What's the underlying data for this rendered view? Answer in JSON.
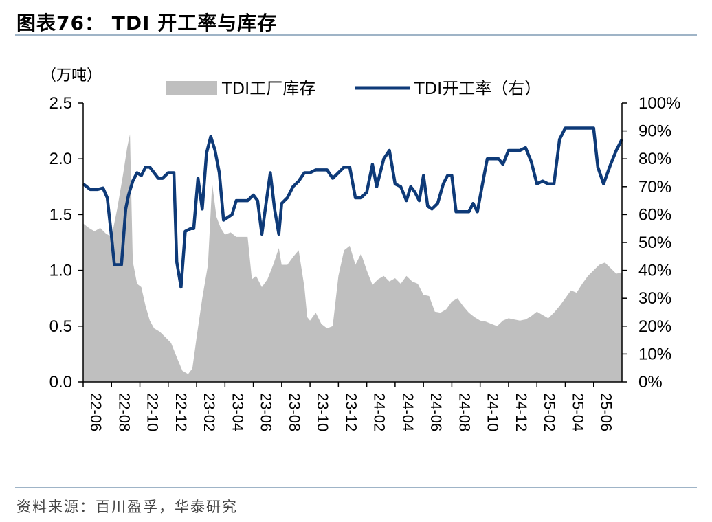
{
  "title": "图表76： TDI 开工率与库存",
  "source": "资料来源：百川盈孚，华泰研究",
  "chart_data": {
    "type": "area+line",
    "left_unit": "（万吨）",
    "left_ylim": [
      0,
      2.5
    ],
    "left_ticks": [
      "0.0",
      "0.5",
      "1.0",
      "1.5",
      "2.0",
      "2.5"
    ],
    "right_ylim": [
      0,
      100
    ],
    "right_ticks": [
      "0%",
      "10%",
      "20%",
      "30%",
      "40%",
      "50%",
      "60%",
      "70%",
      "80%",
      "90%",
      "100%"
    ],
    "x_ticks": [
      "22-06",
      "22-08",
      "22-10",
      "22-12",
      "23-02",
      "23-04",
      "23-06",
      "23-08",
      "23-10",
      "23-12",
      "24-02",
      "24-04",
      "24-06",
      "24-08",
      "24-10",
      "24-12",
      "25-02",
      "25-04",
      "25-06"
    ],
    "x_range_months": [
      0,
      19.0
    ],
    "legend_position": "top",
    "series": [
      {
        "name": "TDI工厂库存",
        "kind": "area",
        "axis": "left",
        "color": "#bfbfbf",
        "points": [
          [
            0.0,
            1.42
          ],
          [
            0.2,
            1.38
          ],
          [
            0.4,
            1.35
          ],
          [
            0.6,
            1.38
          ],
          [
            0.8,
            1.33
          ],
          [
            1.0,
            1.3
          ],
          [
            1.2,
            1.55
          ],
          [
            1.4,
            1.85
          ],
          [
            1.55,
            2.1
          ],
          [
            1.65,
            2.22
          ],
          [
            1.75,
            1.08
          ],
          [
            1.9,
            0.88
          ],
          [
            2.05,
            0.85
          ],
          [
            2.2,
            0.68
          ],
          [
            2.35,
            0.55
          ],
          [
            2.5,
            0.48
          ],
          [
            2.7,
            0.45
          ],
          [
            2.9,
            0.4
          ],
          [
            3.1,
            0.35
          ],
          [
            3.3,
            0.22
          ],
          [
            3.5,
            0.1
          ],
          [
            3.7,
            0.07
          ],
          [
            3.85,
            0.12
          ],
          [
            4.0,
            0.4
          ],
          [
            4.2,
            0.75
          ],
          [
            4.4,
            1.05
          ],
          [
            4.55,
            1.78
          ],
          [
            4.7,
            1.48
          ],
          [
            4.85,
            1.38
          ],
          [
            5.0,
            1.32
          ],
          [
            5.2,
            1.34
          ],
          [
            5.4,
            1.3
          ],
          [
            5.6,
            1.3
          ],
          [
            5.8,
            1.3
          ],
          [
            5.95,
            0.92
          ],
          [
            6.1,
            0.95
          ],
          [
            6.3,
            0.85
          ],
          [
            6.5,
            0.92
          ],
          [
            6.7,
            1.05
          ],
          [
            6.9,
            1.2
          ],
          [
            7.0,
            1.05
          ],
          [
            7.2,
            1.05
          ],
          [
            7.4,
            1.12
          ],
          [
            7.6,
            1.18
          ],
          [
            7.8,
            0.85
          ],
          [
            7.9,
            0.58
          ],
          [
            8.0,
            0.55
          ],
          [
            8.2,
            0.62
          ],
          [
            8.4,
            0.52
          ],
          [
            8.6,
            0.48
          ],
          [
            8.8,
            0.5
          ],
          [
            9.0,
            0.95
          ],
          [
            9.2,
            1.18
          ],
          [
            9.4,
            1.22
          ],
          [
            9.6,
            1.05
          ],
          [
            9.8,
            1.15
          ],
          [
            10.0,
            1.0
          ],
          [
            10.2,
            0.87
          ],
          [
            10.4,
            0.92
          ],
          [
            10.6,
            0.95
          ],
          [
            10.8,
            0.9
          ],
          [
            11.0,
            0.93
          ],
          [
            11.2,
            0.88
          ],
          [
            11.4,
            0.95
          ],
          [
            11.6,
            0.9
          ],
          [
            11.8,
            0.88
          ],
          [
            12.0,
            0.78
          ],
          [
            12.2,
            0.77
          ],
          [
            12.4,
            0.63
          ],
          [
            12.6,
            0.62
          ],
          [
            12.8,
            0.65
          ],
          [
            13.0,
            0.72
          ],
          [
            13.2,
            0.75
          ],
          [
            13.4,
            0.68
          ],
          [
            13.6,
            0.62
          ],
          [
            13.8,
            0.58
          ],
          [
            14.0,
            0.55
          ],
          [
            14.2,
            0.54
          ],
          [
            14.4,
            0.52
          ],
          [
            14.6,
            0.5
          ],
          [
            14.8,
            0.55
          ],
          [
            15.0,
            0.57
          ],
          [
            15.2,
            0.56
          ],
          [
            15.4,
            0.55
          ],
          [
            15.6,
            0.56
          ],
          [
            15.8,
            0.59
          ],
          [
            16.0,
            0.63
          ],
          [
            16.2,
            0.6
          ],
          [
            16.4,
            0.57
          ],
          [
            16.6,
            0.62
          ],
          [
            16.8,
            0.68
          ],
          [
            17.0,
            0.75
          ],
          [
            17.2,
            0.82
          ],
          [
            17.4,
            0.8
          ],
          [
            17.6,
            0.88
          ],
          [
            17.8,
            0.95
          ],
          [
            18.0,
            1.0
          ],
          [
            18.2,
            1.05
          ],
          [
            18.4,
            1.07
          ],
          [
            18.6,
            1.02
          ],
          [
            18.8,
            0.97
          ],
          [
            19.0,
            0.98
          ]
        ]
      },
      {
        "name": "TDI开工率（右）",
        "kind": "line",
        "axis": "right",
        "color": "#0e3a78",
        "points": [
          [
            0.0,
            71
          ],
          [
            0.25,
            69
          ],
          [
            0.5,
            69
          ],
          [
            0.7,
            69.5
          ],
          [
            0.85,
            66
          ],
          [
            1.0,
            52
          ],
          [
            1.1,
            42
          ],
          [
            1.2,
            42
          ],
          [
            1.35,
            42
          ],
          [
            1.5,
            62
          ],
          [
            1.6,
            67
          ],
          [
            1.75,
            72
          ],
          [
            1.9,
            75
          ],
          [
            2.05,
            74
          ],
          [
            2.2,
            77
          ],
          [
            2.35,
            77
          ],
          [
            2.5,
            75
          ],
          [
            2.65,
            73
          ],
          [
            2.8,
            73
          ],
          [
            3.0,
            75
          ],
          [
            3.2,
            75
          ],
          [
            3.3,
            43
          ],
          [
            3.45,
            34
          ],
          [
            3.6,
            54
          ],
          [
            3.8,
            55
          ],
          [
            3.9,
            55
          ],
          [
            4.05,
            73
          ],
          [
            4.2,
            62
          ],
          [
            4.35,
            82
          ],
          [
            4.5,
            88
          ],
          [
            4.65,
            83
          ],
          [
            4.8,
            75
          ],
          [
            4.95,
            58
          ],
          [
            5.1,
            59
          ],
          [
            5.25,
            60
          ],
          [
            5.4,
            65
          ],
          [
            5.6,
            65
          ],
          [
            5.8,
            65
          ],
          [
            6.0,
            67
          ],
          [
            6.15,
            65
          ],
          [
            6.3,
            53
          ],
          [
            6.45,
            64
          ],
          [
            6.6,
            75
          ],
          [
            6.75,
            62
          ],
          [
            6.9,
            53
          ],
          [
            7.0,
            64
          ],
          [
            7.2,
            66
          ],
          [
            7.4,
            70
          ],
          [
            7.6,
            72
          ],
          [
            7.8,
            75
          ],
          [
            8.0,
            75
          ],
          [
            8.2,
            76
          ],
          [
            8.4,
            76
          ],
          [
            8.6,
            76
          ],
          [
            8.8,
            73
          ],
          [
            9.0,
            75
          ],
          [
            9.2,
            77
          ],
          [
            9.4,
            77
          ],
          [
            9.6,
            66
          ],
          [
            9.8,
            66
          ],
          [
            10.0,
            68
          ],
          [
            10.2,
            78
          ],
          [
            10.35,
            70
          ],
          [
            10.6,
            80
          ],
          [
            10.8,
            83
          ],
          [
            11.0,
            71
          ],
          [
            11.2,
            70
          ],
          [
            11.4,
            65
          ],
          [
            11.55,
            70
          ],
          [
            11.7,
            68
          ],
          [
            11.85,
            65
          ],
          [
            12.0,
            74
          ],
          [
            12.15,
            63
          ],
          [
            12.3,
            62
          ],
          [
            12.5,
            64
          ],
          [
            12.7,
            71
          ],
          [
            12.85,
            74
          ],
          [
            13.0,
            74
          ],
          [
            13.15,
            61
          ],
          [
            13.4,
            61
          ],
          [
            13.6,
            61
          ],
          [
            13.75,
            64
          ],
          [
            13.9,
            61
          ],
          [
            14.1,
            72
          ],
          [
            14.25,
            80
          ],
          [
            14.45,
            80
          ],
          [
            14.65,
            80
          ],
          [
            14.8,
            78
          ],
          [
            15.0,
            83
          ],
          [
            15.2,
            83
          ],
          [
            15.4,
            83
          ],
          [
            15.6,
            84
          ],
          [
            15.8,
            79
          ],
          [
            16.0,
            71
          ],
          [
            16.2,
            72
          ],
          [
            16.4,
            71
          ],
          [
            16.6,
            71
          ],
          [
            16.8,
            87
          ],
          [
            17.0,
            91
          ],
          [
            17.2,
            91
          ],
          [
            17.4,
            91
          ],
          [
            17.6,
            91
          ],
          [
            17.8,
            91
          ],
          [
            18.0,
            91
          ],
          [
            18.15,
            77
          ],
          [
            18.35,
            71
          ],
          [
            18.6,
            78
          ],
          [
            18.8,
            83
          ],
          [
            19.0,
            87
          ]
        ]
      }
    ]
  }
}
